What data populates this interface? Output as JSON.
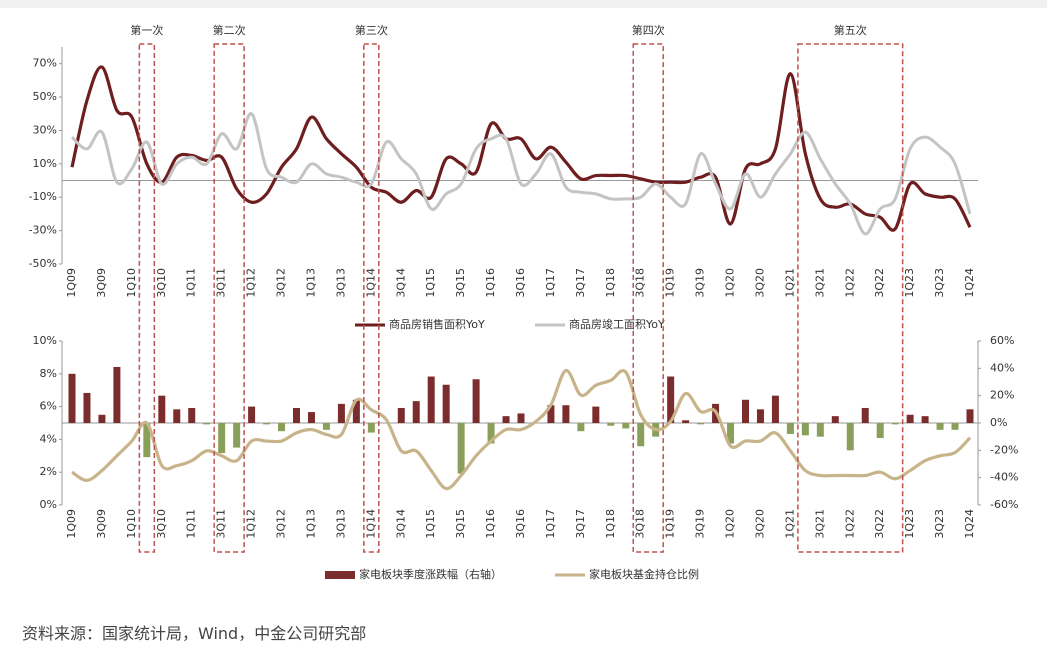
{
  "chart_data": [
    {
      "type": "line",
      "categories": [
        "1Q09",
        null,
        "3Q09",
        null,
        "1Q10",
        null,
        "3Q10",
        null,
        "1Q11",
        null,
        "3Q11",
        null,
        "1Q12",
        null,
        "3Q12",
        null,
        "1Q13",
        null,
        "3Q13",
        null,
        "1Q14",
        null,
        "3Q14",
        null,
        "1Q15",
        null,
        "3Q15",
        null,
        "1Q16",
        null,
        "3Q16",
        null,
        "1Q17",
        null,
        "3Q17",
        null,
        "1Q18",
        null,
        "3Q18",
        null,
        "1Q19",
        null,
        "3Q19",
        null,
        "1Q20",
        null,
        "3Q20",
        null,
        "1Q21",
        null,
        "3Q21",
        null,
        "1Q22",
        null,
        "3Q22",
        null,
        "1Q23",
        null,
        "3Q23",
        null,
        "1Q24"
      ],
      "ylim": [
        -50,
        80
      ],
      "yticks": [
        {
          "value": -50,
          "label": "-50%"
        },
        {
          "value": -30,
          "label": "-30%"
        },
        {
          "value": -10,
          "label": "-10%"
        },
        {
          "value": 10,
          "label": "10%"
        },
        {
          "value": 30,
          "label": "30%"
        },
        {
          "value": 50,
          "label": "50%"
        },
        {
          "value": 70,
          "label": "70%"
        }
      ],
      "series": [
        {
          "name": "商品房销售面积YoY",
          "color": "#6e1e1e",
          "values": [
            8,
            48,
            68,
            42,
            38,
            10,
            -1,
            14,
            15,
            12,
            14,
            -5,
            -13,
            -8,
            8,
            19,
            38,
            25,
            16,
            8,
            -4,
            -7,
            -13,
            -6,
            -10,
            13,
            10,
            5,
            34,
            25,
            25,
            13,
            20,
            11,
            1,
            3,
            3,
            3,
            1,
            -1,
            -1,
            -1,
            2,
            2,
            -26,
            7,
            10,
            19,
            64,
            16,
            -11,
            -16,
            -14,
            -20,
            -22,
            -29,
            -2,
            -8,
            -10,
            -11,
            -28
          ]
        },
        {
          "name": "商品房竣工面积YoY",
          "color": "#c4c4c4",
          "values": [
            26,
            19,
            29,
            -1,
            7,
            23,
            -2,
            10,
            14,
            10,
            28,
            19,
            40,
            7,
            2,
            -1,
            10,
            4,
            2,
            -1,
            -2,
            23,
            13,
            4,
            -17,
            -8,
            -2,
            19,
            25,
            25,
            -2,
            4,
            16,
            -4,
            -7,
            -8,
            -11,
            -11,
            -10,
            -2,
            -10,
            -14,
            16,
            -2,
            -17,
            4,
            -10,
            4,
            16,
            29,
            13,
            -2,
            -14,
            -32,
            -17,
            -11,
            19,
            26,
            20,
            10,
            -20
          ]
        }
      ]
    },
    {
      "type": "combo",
      "categories": [
        "1Q09",
        null,
        "3Q09",
        null,
        "1Q10",
        null,
        "3Q10",
        null,
        "1Q11",
        null,
        "3Q11",
        null,
        "1Q12",
        null,
        "3Q12",
        null,
        "1Q13",
        null,
        "3Q13",
        null,
        "1Q14",
        null,
        "3Q14",
        null,
        "1Q15",
        null,
        "3Q15",
        null,
        "1Q16",
        null,
        "3Q16",
        null,
        "1Q17",
        null,
        "3Q17",
        null,
        "1Q18",
        null,
        "3Q18",
        null,
        "1Q19",
        null,
        "3Q19",
        null,
        "1Q20",
        null,
        "3Q20",
        null,
        "1Q21",
        null,
        "3Q21",
        null,
        "1Q22",
        null,
        "3Q22",
        null,
        "1Q23",
        null,
        "3Q23",
        null,
        "1Q24"
      ],
      "ylim": [
        0,
        10
      ],
      "yticks": [
        {
          "value": 0,
          "label": "0%"
        },
        {
          "value": 2,
          "label": "2%"
        },
        {
          "value": 4,
          "label": "4%"
        },
        {
          "value": 6,
          "label": "6%"
        },
        {
          "value": 8,
          "label": "8%"
        },
        {
          "value": 10,
          "label": "10%"
        }
      ],
      "y2lim": [
        -60,
        60
      ],
      "y2ticks": [
        {
          "value": -60,
          "label": "-60%"
        },
        {
          "value": -40,
          "label": "-40%"
        },
        {
          "value": -20,
          "label": "-20%"
        },
        {
          "value": 0,
          "label": "0%"
        },
        {
          "value": 20,
          "label": "20%"
        },
        {
          "value": 40,
          "label": "40%"
        },
        {
          "value": 60,
          "label": "60%"
        }
      ],
      "series": [
        {
          "name": "家电板块季度涨跌幅（右轴）",
          "type": "bar",
          "axis": "y2",
          "color": "#7b2c2c",
          "negative_color": "#8aa05a",
          "values": [
            36,
            22,
            6,
            41,
            0,
            -25,
            20,
            10,
            11,
            -1,
            -22,
            -18,
            12,
            -1,
            -6,
            11,
            8,
            -5,
            14,
            17,
            -7,
            0,
            11,
            16,
            34,
            28,
            -37,
            32,
            -15,
            5,
            7,
            0,
            13,
            13,
            -6,
            12,
            -2,
            -4,
            -17,
            -10,
            34,
            2,
            -1,
            14,
            -15,
            17,
            10,
            20,
            -8,
            -9,
            -10,
            5,
            -20,
            11,
            -11,
            -1,
            6,
            5,
            -5,
            -5,
            10
          ]
        },
        {
          "name": "家电板块基金持仓比例",
          "type": "line",
          "color": "#c8b48a",
          "values": [
            2.0,
            1.5,
            2.1,
            3.0,
            3.9,
            5.0,
            2.4,
            2.4,
            2.7,
            3.3,
            3.0,
            2.7,
            3.9,
            3.9,
            3.9,
            4.4,
            4.6,
            4.3,
            4.3,
            6.4,
            5.8,
            5.2,
            3.3,
            3.3,
            2.1,
            1.0,
            1.8,
            3.0,
            3.9,
            4.6,
            4.6,
            5.1,
            6.1,
            8.2,
            6.7,
            7.3,
            7.6,
            8.1,
            5.5,
            4.6,
            5.1,
            6.8,
            5.7,
            5.7,
            3.6,
            3.9,
            3.9,
            4.4,
            3.3,
            2.1,
            1.8,
            1.8,
            1.8,
            1.8,
            2.0,
            1.6,
            2.1,
            2.7,
            3.0,
            3.2,
            4.1
          ]
        }
      ]
    }
  ],
  "annotations": [
    {
      "text": "第一次",
      "from": 5,
      "to": 5
    },
    {
      "text": "第二次",
      "from": 10,
      "to": 11
    },
    {
      "text": "第三次",
      "from": 20,
      "to": 20
    },
    {
      "text": "第四次",
      "from": 38,
      "to": 39
    },
    {
      "text": "第五次",
      "from": 49,
      "to": 55
    }
  ],
  "source": "资料来源：国家统计局，Wind，中金公司研究部"
}
